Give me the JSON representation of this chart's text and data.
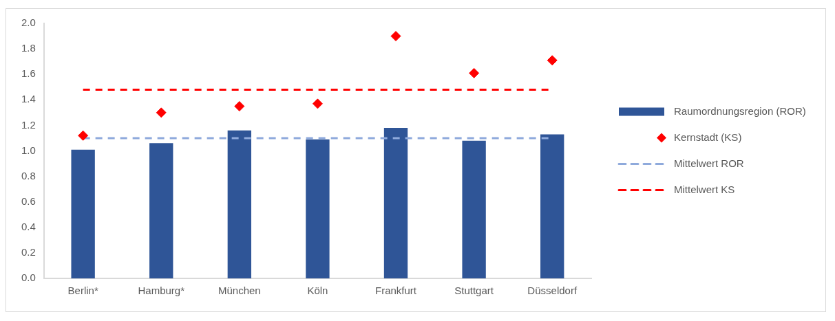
{
  "chart_data": {
    "type": "bar",
    "categories": [
      "Berlin*",
      "Hamburg*",
      "München",
      "Köln",
      "Frankfurt",
      "Stuttgart",
      "Düsseldorf"
    ],
    "series": [
      {
        "name": "Raumordnungsregion (ROR)",
        "color": "#2f5597",
        "values": [
          1.01,
          1.06,
          1.16,
          1.09,
          1.18,
          1.08,
          1.13
        ]
      },
      {
        "name": "Kernstadt (KS)",
        "type": "scatter",
        "marker": "diamond",
        "color": "#ff0000",
        "values": [
          1.12,
          1.3,
          1.35,
          1.37,
          1.9,
          1.61,
          1.71
        ]
      }
    ],
    "ref_lines": [
      {
        "axis": "y",
        "value": 1.1,
        "label": "Mittelwert ROR",
        "color": "#8faadc",
        "line_style": "dashed"
      },
      {
        "axis": "y",
        "value": 1.48,
        "label": "Mittelwert KS",
        "color": "#ff0000",
        "line_style": "dashed"
      }
    ],
    "ylim": [
      0,
      2.0
    ],
    "yticks": [
      {
        "value": 0,
        "label": "0.0"
      },
      {
        "value": 0.2,
        "label": "0.2"
      },
      {
        "value": 0.4,
        "label": "0.4"
      },
      {
        "value": 0.6,
        "label": "0.6"
      },
      {
        "value": 0.8,
        "label": "0.8"
      },
      {
        "value": 1.0,
        "label": "1.0"
      },
      {
        "value": 1.2,
        "label": "1.2"
      },
      {
        "value": 1.4,
        "label": "1.4"
      },
      {
        "value": 1.6,
        "label": "1.6"
      },
      {
        "value": 1.8,
        "label": "1.8"
      },
      {
        "value": 2.0,
        "label": "2.0"
      }
    ],
    "grid": false,
    "legend": "right"
  }
}
